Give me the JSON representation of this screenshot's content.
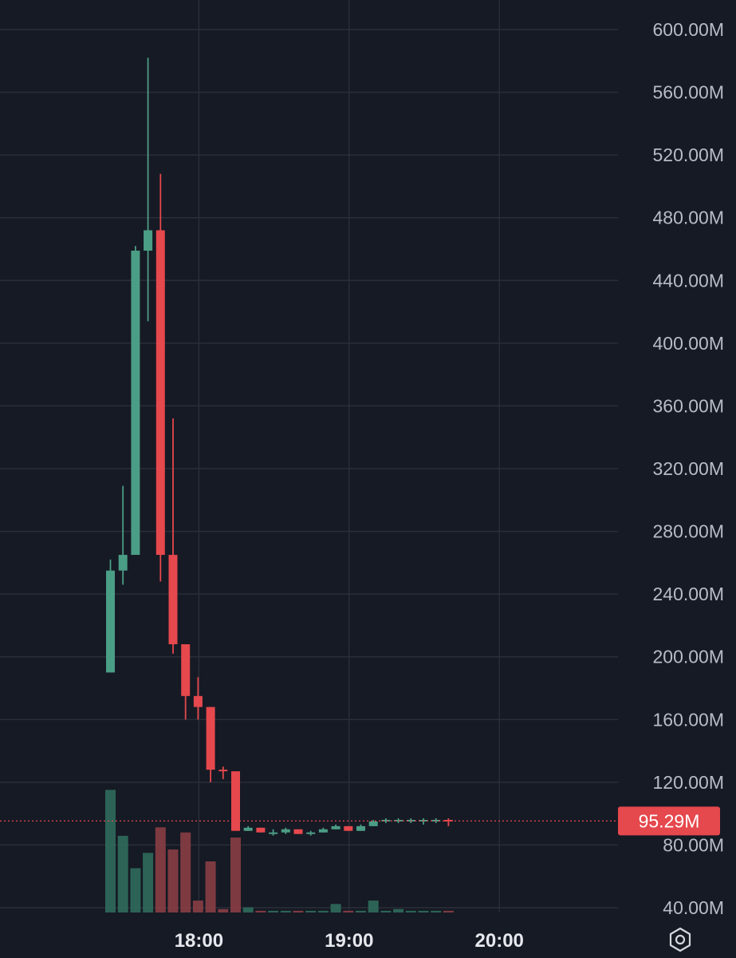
{
  "chart_data": {
    "type": "candlestick",
    "ylim": [
      40,
      600
    ],
    "y_unit": "M",
    "y_ticks": [
      "600.00M",
      "560.00M",
      "520.00M",
      "480.00M",
      "440.00M",
      "400.00M",
      "360.00M",
      "320.00M",
      "280.00M",
      "240.00M",
      "200.00M",
      "160.00M",
      "120.00M",
      "80.00M",
      "40.00M"
    ],
    "x_ticks": [
      "18:00",
      "19:00",
      "20:00"
    ],
    "last_price": 95.29,
    "last_price_label": "95.29M",
    "colors": {
      "up": "#4b9e86",
      "down": "#e5484d",
      "grid": "#2a2e39",
      "background": "#161a24"
    },
    "candles": [
      {
        "time": "17:25",
        "open": 190,
        "high": 262,
        "low": 190,
        "close": 255,
        "volume": 0.72
      },
      {
        "time": "17:30",
        "open": 255,
        "high": 309,
        "low": 246,
        "close": 265,
        "volume": 0.45
      },
      {
        "time": "17:35",
        "open": 265,
        "high": 462,
        "low": 265,
        "close": 459,
        "volume": 0.26
      },
      {
        "time": "17:40",
        "open": 459,
        "high": 582,
        "low": 414,
        "close": 472,
        "volume": 0.35
      },
      {
        "time": "17:45",
        "open": 472,
        "high": 508,
        "low": 248,
        "close": 265,
        "volume": 0.5
      },
      {
        "time": "17:50",
        "open": 265,
        "high": 352,
        "low": 202,
        "close": 208,
        "volume": 0.37
      },
      {
        "time": "17:55",
        "open": 208,
        "high": 208,
        "low": 160,
        "close": 175,
        "volume": 0.47
      },
      {
        "time": "18:00",
        "open": 175,
        "high": 187,
        "low": 160,
        "close": 168,
        "volume": 0.07
      },
      {
        "time": "18:05",
        "open": 168,
        "high": 168,
        "low": 120,
        "close": 128,
        "volume": 0.3
      },
      {
        "time": "18:10",
        "open": 128,
        "high": 130,
        "low": 122,
        "close": 127,
        "volume": 0.02
      },
      {
        "time": "18:15",
        "open": 127,
        "high": 127,
        "low": 89,
        "close": 89,
        "volume": 0.44
      },
      {
        "time": "18:20",
        "open": 89,
        "high": 92,
        "low": 89,
        "close": 91,
        "volume": 0.03
      },
      {
        "time": "18:25",
        "open": 91,
        "high": 91,
        "low": 88,
        "close": 88,
        "volume": 0.01
      },
      {
        "time": "18:30",
        "open": 88,
        "high": 90,
        "low": 86,
        "close": 88,
        "volume": 0.01
      },
      {
        "time": "18:35",
        "open": 88,
        "high": 91,
        "low": 87,
        "close": 90,
        "volume": 0.01
      },
      {
        "time": "18:40",
        "open": 90,
        "high": 90,
        "low": 87,
        "close": 87,
        "volume": 0.01
      },
      {
        "time": "18:45",
        "open": 87,
        "high": 89,
        "low": 86,
        "close": 88,
        "volume": 0.01
      },
      {
        "time": "18:50",
        "open": 88,
        "high": 91,
        "low": 88,
        "close": 90,
        "volume": 0.01
      },
      {
        "time": "18:55",
        "open": 90,
        "high": 93,
        "low": 90,
        "close": 92,
        "volume": 0.05
      },
      {
        "time": "19:00",
        "open": 92,
        "high": 92,
        "low": 89,
        "close": 89,
        "volume": 0.01
      },
      {
        "time": "19:05",
        "open": 89,
        "high": 93,
        "low": 89,
        "close": 92,
        "volume": 0.01
      },
      {
        "time": "19:10",
        "open": 92,
        "high": 96,
        "low": 92,
        "close": 95,
        "volume": 0.07
      },
      {
        "time": "19:15",
        "open": 95,
        "high": 97,
        "low": 94,
        "close": 96,
        "volume": 0.01
      },
      {
        "time": "19:20",
        "open": 96,
        "high": 97,
        "low": 94,
        "close": 96,
        "volume": 0.02
      },
      {
        "time": "19:25",
        "open": 96,
        "high": 97,
        "low": 94,
        "close": 96,
        "volume": 0.01
      },
      {
        "time": "19:30",
        "open": 96,
        "high": 97,
        "low": 93,
        "close": 96,
        "volume": 0.01
      },
      {
        "time": "19:35",
        "open": 96,
        "high": 97,
        "low": 94,
        "close": 96,
        "volume": 0.01
      },
      {
        "time": "19:40",
        "open": 96,
        "high": 97,
        "low": 92,
        "close": 95.29,
        "volume": 0.01
      }
    ]
  },
  "icons": {
    "settings": "settings-hexagon-icon"
  }
}
